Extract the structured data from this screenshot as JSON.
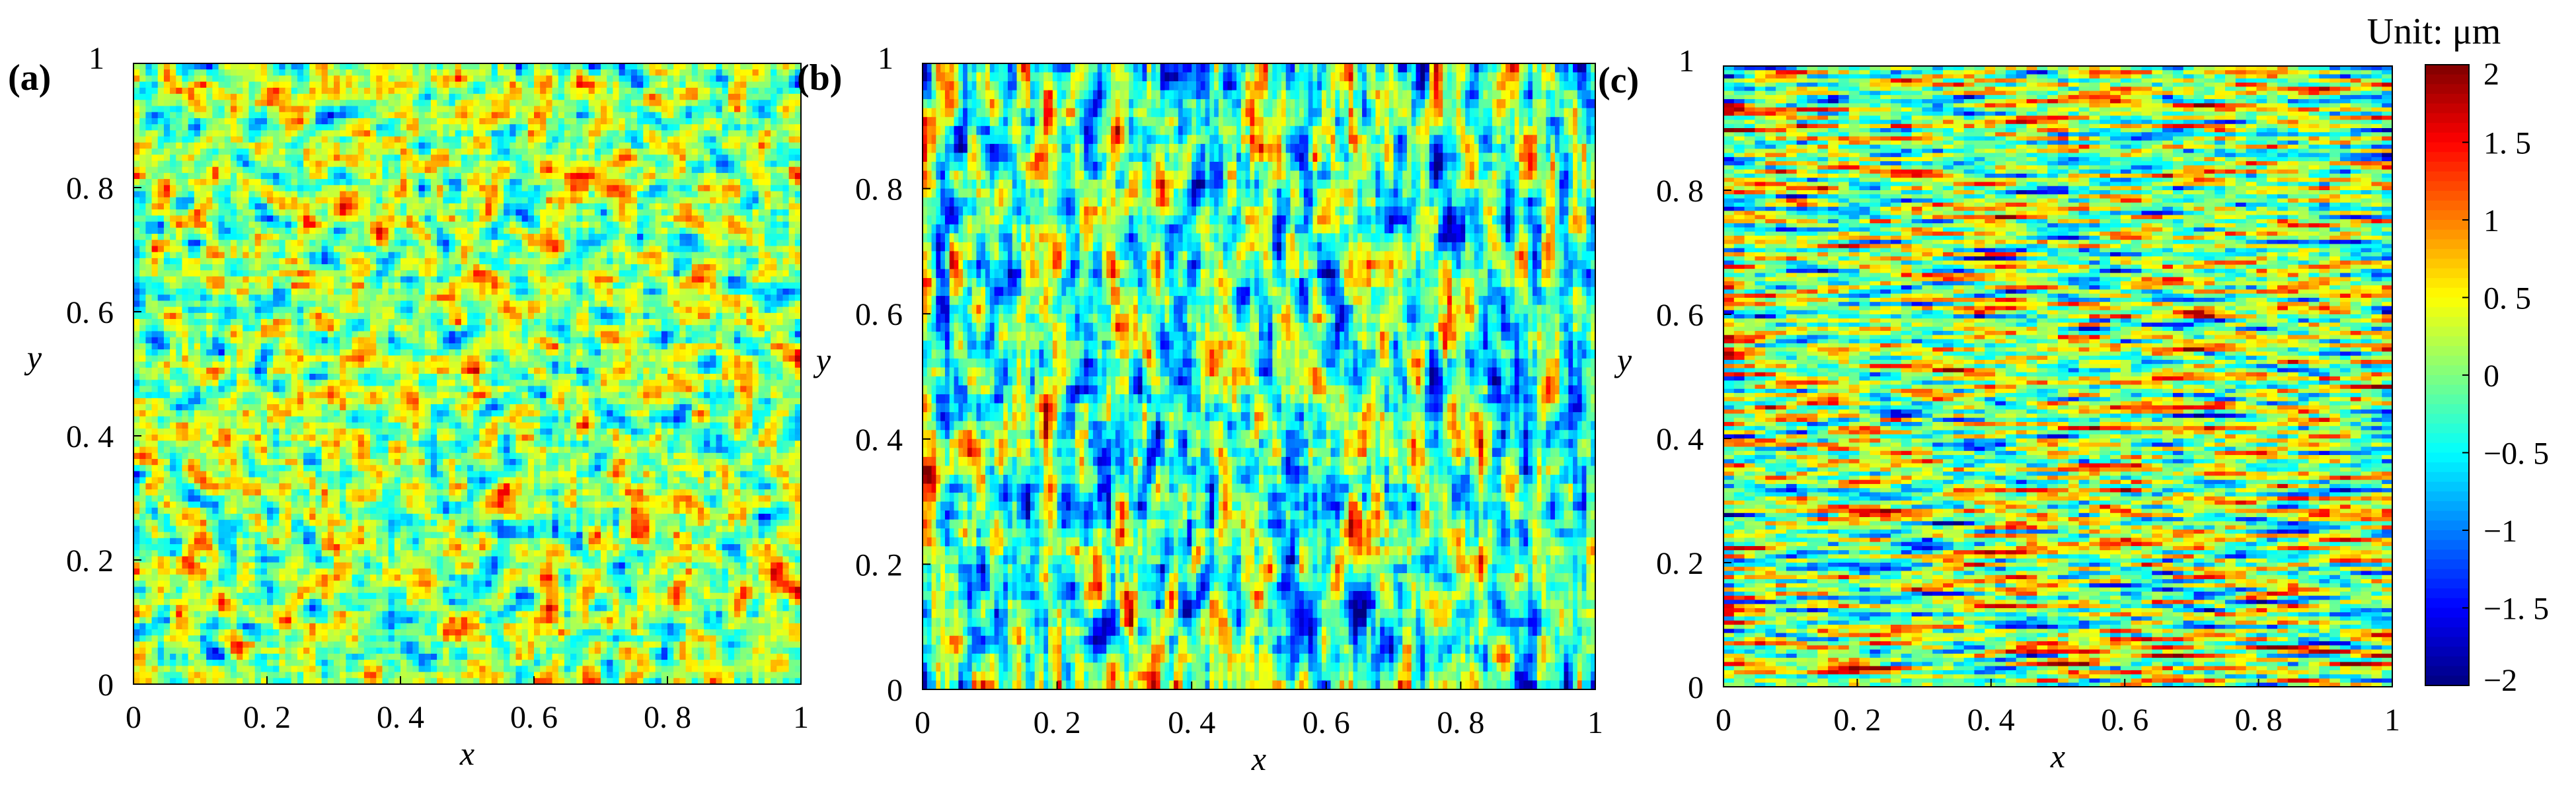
{
  "chart_data": [
    {
      "type": "heatmap",
      "panel_label": "(a)",
      "xlabel": "x",
      "ylabel": "y",
      "xlim": [
        0,
        1
      ],
      "ylim": [
        0,
        1
      ],
      "x_ticks": [
        "0",
        "0. 2",
        "0. 4",
        "0. 6",
        "0. 8",
        "1"
      ],
      "y_ticks": [
        "0",
        "0. 2",
        "0. 4",
        "0. 6",
        "0. 8",
        "1"
      ],
      "texture": "isotropic random roughness",
      "stats": {
        "mean": 0.1,
        "std": 0.5
      }
    },
    {
      "type": "heatmap",
      "panel_label": "(b)",
      "xlabel": "x",
      "ylabel": "y",
      "xlim": [
        0,
        1
      ],
      "ylim": [
        0,
        1
      ],
      "x_ticks": [
        "0",
        "0. 2",
        "0. 4",
        "0. 6",
        "0. 8",
        "1"
      ],
      "y_ticks": [
        "0",
        "0. 2",
        "0. 4",
        "0. 6",
        "0. 8",
        "1"
      ],
      "texture": "anisotropic, elongated along y",
      "stats": {
        "mean": -0.2,
        "std": 0.65
      }
    },
    {
      "type": "heatmap",
      "panel_label": "(c)",
      "xlabel": "x",
      "ylabel": "y",
      "xlim": [
        0,
        1
      ],
      "ylim": [
        0,
        1
      ],
      "x_ticks": [
        "0",
        "0. 2",
        "0. 4",
        "0. 6",
        "0. 8",
        "1"
      ],
      "y_ticks": [
        "0",
        "0. 2",
        "0. 4",
        "0. 6",
        "0. 8",
        "1"
      ],
      "texture": "anisotropic, elongated along x",
      "stats": {
        "mean": 0.1,
        "std": 0.7
      }
    }
  ],
  "colorbar": {
    "title": "Unit: μm",
    "range": [
      -2,
      2
    ],
    "ticks": [
      "2",
      "1. 5",
      "1",
      "0. 5",
      "0",
      "−0. 5",
      "−1",
      "−1. 5",
      "−2"
    ],
    "colormap": "jet",
    "colors": [
      "#00007f",
      "#0000ff",
      "#007fff",
      "#00ffff",
      "#7fff7f",
      "#ffff00",
      "#ff7f00",
      "#ff0000",
      "#7f0000"
    ]
  }
}
